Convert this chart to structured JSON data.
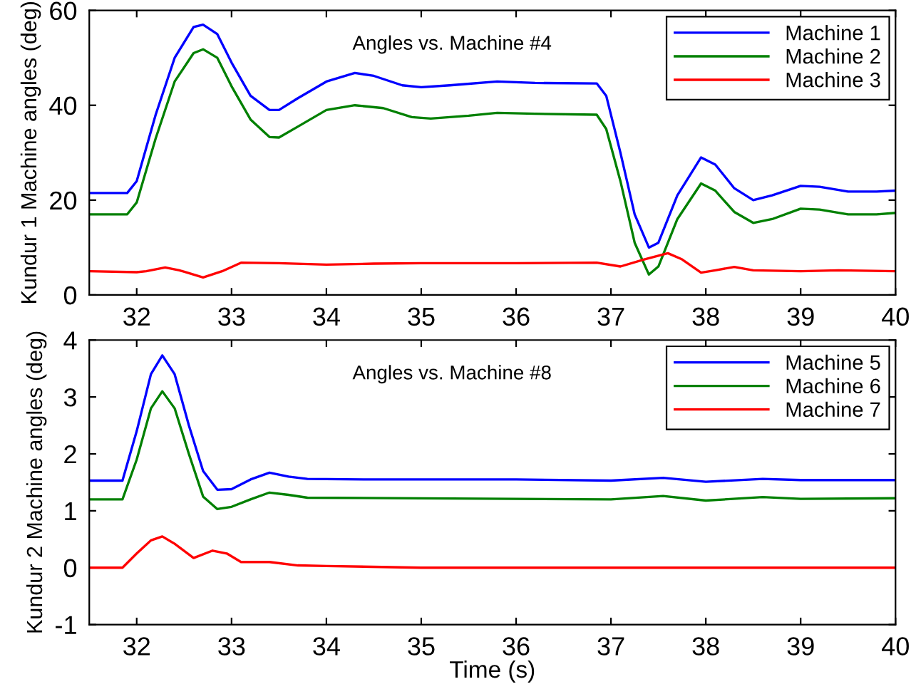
{
  "chart_data": [
    {
      "type": "line",
      "ylabel": "Kundur 1 Machine angles (deg)",
      "annotations": [
        "Angles vs. Machine #4"
      ],
      "xlim": [
        31.5,
        40
      ],
      "xticks": [
        32,
        33,
        34,
        35,
        36,
        37,
        38,
        39,
        40
      ],
      "ylim": [
        0,
        60
      ],
      "yticks": [
        0,
        20,
        40,
        60
      ],
      "legend": "top right",
      "grid": false,
      "series": [
        {
          "name": "Machine 1",
          "color": "#0000ff",
          "x": [
            31.5,
            31.9,
            32.0,
            32.2,
            32.4,
            32.6,
            32.7,
            32.85,
            33.0,
            33.2,
            33.4,
            33.5,
            33.7,
            34.0,
            34.3,
            34.5,
            34.8,
            35.0,
            35.3,
            35.8,
            36.2,
            36.85,
            36.95,
            37.1,
            37.25,
            37.4,
            37.5,
            37.7,
            37.95,
            38.1,
            38.3,
            38.5,
            38.7,
            39.0,
            39.2,
            39.5,
            39.8,
            40
          ],
          "values": [
            21.5,
            21.5,
            24,
            38,
            50,
            56.5,
            57,
            55,
            49,
            42,
            39,
            39,
            41.5,
            45,
            46.8,
            46.2,
            44.2,
            43.8,
            44.2,
            45,
            44.7,
            44.6,
            42,
            30,
            17,
            10,
            11,
            21,
            29,
            27.5,
            22.5,
            20,
            21,
            23,
            22.8,
            21.8,
            21.8,
            22
          ]
        },
        {
          "name": "Machine 2",
          "color": "#008000",
          "x": [
            31.5,
            31.9,
            32.0,
            32.2,
            32.4,
            32.6,
            32.7,
            32.85,
            33.0,
            33.2,
            33.4,
            33.5,
            33.7,
            34.0,
            34.3,
            34.6,
            34.9,
            35.1,
            35.5,
            35.8,
            36.2,
            36.85,
            36.95,
            37.1,
            37.25,
            37.4,
            37.5,
            37.7,
            37.95,
            38.1,
            38.3,
            38.5,
            38.7,
            39.0,
            39.2,
            39.5,
            39.8,
            40
          ],
          "values": [
            17,
            17,
            19.5,
            33,
            45,
            51,
            51.8,
            50,
            44,
            37,
            33.3,
            33.2,
            35.5,
            39,
            40,
            39.4,
            37.5,
            37.2,
            37.8,
            38.4,
            38.2,
            38,
            35,
            24,
            11,
            4.3,
            6,
            16,
            23.5,
            22,
            17.5,
            15.2,
            16,
            18.2,
            18,
            17,
            17,
            17.3
          ]
        },
        {
          "name": "Machine 3",
          "color": "#ff0000",
          "x": [
            31.5,
            32.0,
            32.1,
            32.3,
            32.45,
            32.7,
            32.9,
            33.1,
            33.5,
            34.0,
            34.5,
            35,
            36,
            36.85,
            37.1,
            37.35,
            37.6,
            37.75,
            37.95,
            38.1,
            38.3,
            38.5,
            39.0,
            39.4,
            40
          ],
          "values": [
            5,
            4.8,
            5,
            5.8,
            5.2,
            3.7,
            5,
            6.8,
            6.7,
            6.4,
            6.6,
            6.7,
            6.7,
            6.8,
            6,
            7.5,
            8.8,
            7.5,
            4.7,
            5.2,
            5.9,
            5.2,
            5.0,
            5.2,
            5.0
          ]
        }
      ]
    },
    {
      "type": "line",
      "ylabel": "Kundur 2 Machine angles (deg)",
      "xlabel": "Time (s)",
      "annotations": [
        "Angles vs. Machine #8"
      ],
      "xlim": [
        31.5,
        40
      ],
      "xticks": [
        32,
        33,
        34,
        35,
        36,
        37,
        38,
        39,
        40
      ],
      "ylim": [
        -1,
        4
      ],
      "yticks": [
        -1,
        0,
        1,
        2,
        3,
        4
      ],
      "legend": "top right",
      "grid": false,
      "series": [
        {
          "name": "Machine 5",
          "color": "#0000ff",
          "x": [
            31.5,
            31.85,
            32.0,
            32.15,
            32.27,
            32.4,
            32.55,
            32.7,
            32.85,
            33.0,
            33.2,
            33.4,
            33.6,
            33.8,
            34.5,
            36,
            37,
            37.55,
            38.0,
            38.6,
            39,
            40
          ],
          "values": [
            1.53,
            1.53,
            2.4,
            3.4,
            3.73,
            3.4,
            2.5,
            1.7,
            1.37,
            1.38,
            1.55,
            1.67,
            1.6,
            1.56,
            1.55,
            1.55,
            1.53,
            1.58,
            1.51,
            1.56,
            1.54,
            1.54
          ]
        },
        {
          "name": "Machine 6",
          "color": "#008000",
          "x": [
            31.5,
            31.85,
            32.0,
            32.15,
            32.27,
            32.4,
            32.55,
            32.7,
            32.85,
            33.0,
            33.2,
            33.4,
            33.6,
            33.8,
            35,
            37,
            37.55,
            38.0,
            38.6,
            39,
            40
          ],
          "values": [
            1.2,
            1.2,
            1.9,
            2.8,
            3.1,
            2.8,
            2.0,
            1.25,
            1.03,
            1.07,
            1.2,
            1.32,
            1.28,
            1.23,
            1.22,
            1.2,
            1.26,
            1.18,
            1.24,
            1.21,
            1.22
          ]
        },
        {
          "name": "Machine 7",
          "color": "#ff0000",
          "x": [
            31.5,
            31.85,
            32.0,
            32.15,
            32.27,
            32.4,
            32.6,
            32.8,
            32.95,
            33.1,
            33.4,
            33.7,
            34,
            35,
            40
          ],
          "values": [
            0,
            0,
            0.25,
            0.48,
            0.55,
            0.42,
            0.17,
            0.3,
            0.25,
            0.1,
            0.1,
            0.04,
            0.03,
            0.0,
            0
          ]
        }
      ]
    }
  ]
}
